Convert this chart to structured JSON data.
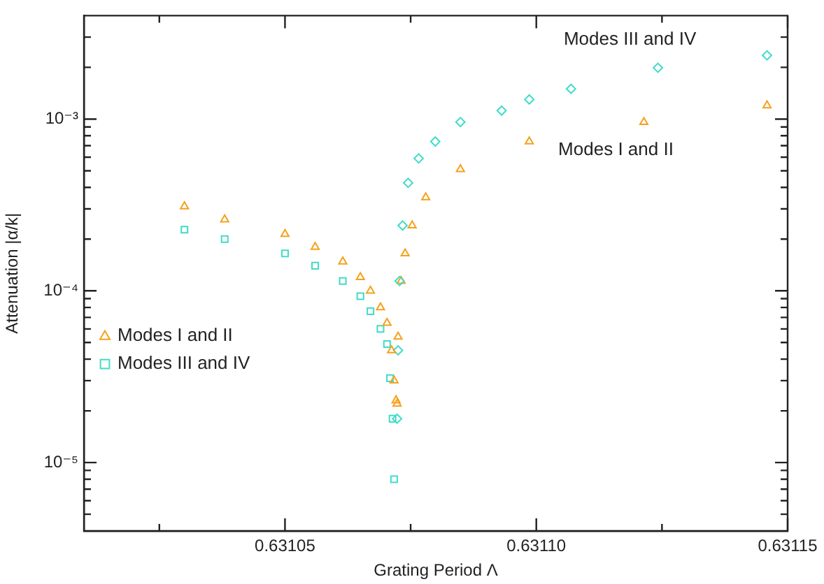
{
  "chart_data": {
    "type": "scatter",
    "xlabel": "Grating Period Λ",
    "ylabel": "Attenuation |α/k|",
    "log": "y",
    "grid": false,
    "legend": "left",
    "xlim": [
      0.63101,
      0.63115
    ],
    "ylim": [
      4e-06,
      0.004
    ],
    "xticks": [
      {
        "value": 0.631025,
        "label": null
      },
      0.63105,
      {
        "value": 0.631075,
        "label": null
      },
      {
        "value": 0.6311,
        "label": "0.63110"
      },
      {
        "value": 0.631125,
        "label": null
      },
      0.63115
    ],
    "yticks": [
      {
        "value": 5e-06,
        "label": null
      },
      {
        "value": 6e-06,
        "label": null
      },
      {
        "value": 7e-06,
        "label": null
      },
      {
        "value": 8e-06,
        "label": null
      },
      {
        "value": 9e-06,
        "label": null
      },
      {
        "value": 1e-05,
        "label": "10⁻⁵"
      },
      {
        "value": 2e-05,
        "label": null
      },
      {
        "value": 3e-05,
        "label": null
      },
      {
        "value": 4e-05,
        "label": null
      },
      {
        "value": 5e-05,
        "label": null
      },
      {
        "value": 6e-05,
        "label": null
      },
      {
        "value": 7e-05,
        "label": null
      },
      {
        "value": 8e-05,
        "label": null
      },
      {
        "value": 9e-05,
        "label": null
      },
      {
        "value": 0.0001,
        "label": "10⁻⁴"
      },
      {
        "value": 0.0002,
        "label": null
      },
      {
        "value": 0.0003,
        "label": null
      },
      {
        "value": 0.0004,
        "label": null
      },
      {
        "value": 0.0005,
        "label": null
      },
      {
        "value": 0.0006,
        "label": null
      },
      {
        "value": 0.0007,
        "label": null
      },
      {
        "value": 0.0008,
        "label": null
      },
      {
        "value": 0.0009,
        "label": null
      },
      {
        "value": 0.001,
        "label": "10⁻³"
      },
      {
        "value": 0.002,
        "label": null
      },
      {
        "value": 0.003,
        "label": null
      }
    ],
    "series": [
      {
        "name": "Modes I and II",
        "color": "#f5a11c",
        "marker": "triangle",
        "x": [
          0.63103,
          0.631038,
          0.63105,
          0.631056,
          0.6310615,
          0.631065,
          0.631067,
          0.631069,
          0.6310703,
          0.6310712,
          0.6310717,
          0.6310721
        ],
        "values": [
          0.00031,
          0.00026,
          0.000214,
          0.00018,
          0.000148,
          0.00012,
          0.0001,
          8e-05,
          6.5e-05,
          4.5e-05,
          3e-05,
          2.3e-05
        ]
      },
      {
        "name": "Modes III and IV",
        "color": "#40dcc8",
        "marker": "square",
        "x": [
          0.63103,
          0.631038,
          0.63105,
          0.631056,
          0.6310615,
          0.631065,
          0.631067,
          0.631069,
          0.6310703,
          0.6310709,
          0.6310714,
          0.6310717
        ],
        "values": [
          0.000227,
          0.0002,
          0.000165,
          0.00014,
          0.000114,
          9.3e-05,
          7.6e-05,
          6e-05,
          4.9e-05,
          3.1e-05,
          1.8e-05,
          8e-06
        ]
      },
      {
        "name": "Modes III and IV",
        "color": "#40dcc8",
        "marker": "diamond",
        "x": [
          0.6310723,
          0.6310725,
          0.6310728,
          0.6310734,
          0.6310745,
          0.6310766,
          0.6310799,
          0.6310849,
          0.6310931,
          0.6310986,
          0.6311069,
          0.6311242,
          0.6311459
        ],
        "values": [
          1.8e-05,
          4.5e-05,
          0.000114,
          0.00024,
          0.000425,
          0.00059,
          0.00074,
          0.00096,
          0.00112,
          0.0013,
          0.0015,
          0.00199,
          0.00235
        ]
      },
      {
        "name": "Modes I and II",
        "color": "#f5a11c",
        "marker": "triangle",
        "x": [
          0.6310723,
          0.6310725,
          0.6310731,
          0.6310739,
          0.6310753,
          0.631078,
          0.6310849,
          0.6310986,
          0.6311214,
          0.6311459
        ],
        "values": [
          2.2e-05,
          5.4e-05,
          0.000114,
          0.000165,
          0.00024,
          0.00035,
          0.00051,
          0.00074,
          0.00096,
          0.0012
        ]
      }
    ]
  }
}
